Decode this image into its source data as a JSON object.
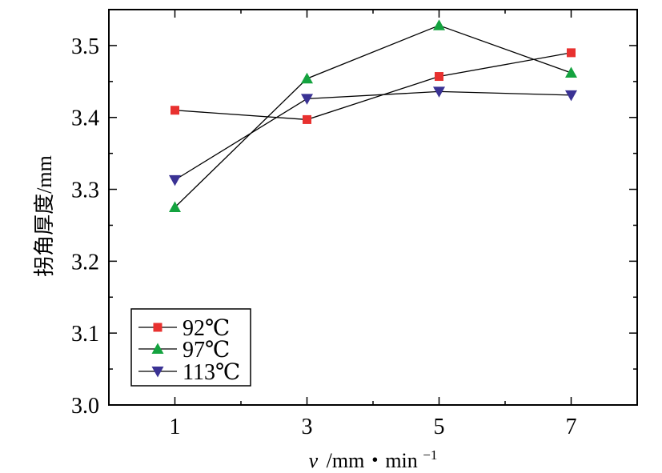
{
  "chart_data": {
    "type": "line",
    "title": "",
    "xlabel": {
      "var": "v",
      "unit": "/mm・min",
      "exp": "−1"
    },
    "ylabel": "拐角厚度/mm",
    "x": [
      1,
      3,
      5,
      7
    ],
    "xlim": [
      0,
      8
    ],
    "ylim": [
      3.0,
      3.55
    ],
    "x_ticks": [
      1,
      3,
      5,
      7
    ],
    "x_tick_labels": [
      "1",
      "3",
      "5",
      "7"
    ],
    "y_ticks": [
      3.0,
      3.1,
      3.2,
      3.3,
      3.4,
      3.5
    ],
    "y_tick_labels": [
      "3.0",
      "3.1",
      "3.2",
      "3.3",
      "3.4",
      "3.5"
    ],
    "grid": false,
    "legend_position": "bottom-left",
    "series": [
      {
        "name": "92℃",
        "marker": "square",
        "color": "#e8312f",
        "values": [
          3.41,
          3.397,
          3.457,
          3.49
        ]
      },
      {
        "name": "97℃",
        "marker": "triangle-up",
        "color": "#14a33f",
        "values": [
          3.275,
          3.454,
          3.528,
          3.462
        ]
      },
      {
        "name": "113℃",
        "marker": "triangle-down",
        "color": "#3a3294",
        "values": [
          3.313,
          3.426,
          3.436,
          3.431
        ]
      }
    ]
  }
}
